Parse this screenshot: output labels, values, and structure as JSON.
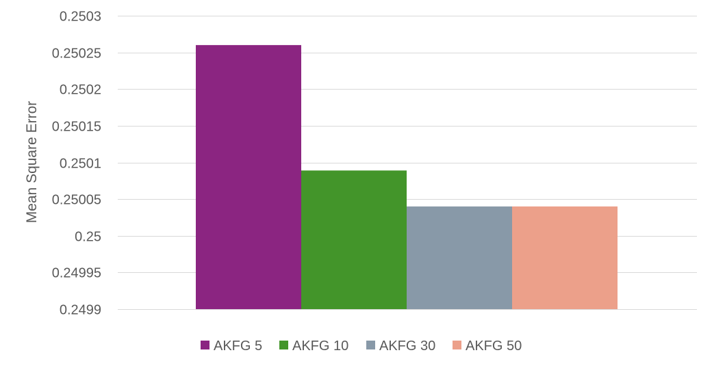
{
  "chart_data": {
    "type": "bar",
    "title": "",
    "xlabel": "",
    "ylabel": "Mean Square Error",
    "ylim": [
      0.2499,
      0.2503
    ],
    "yticks": [
      "0.2499",
      "0.24995",
      "0.25",
      "0.25005",
      "0.2501",
      "0.25015",
      "0.2502",
      "0.25025",
      "0.2503"
    ],
    "yticks_values": [
      0.2499,
      0.24995,
      0.25,
      0.25005,
      0.2501,
      0.25015,
      0.2502,
      0.25025,
      0.2503
    ],
    "grid": true,
    "legend_position": "bottom",
    "series": [
      {
        "name": "AKFG 5",
        "value": 0.25026,
        "color": "#8B2581"
      },
      {
        "name": "AKFG 10",
        "value": 0.250089,
        "color": "#43952A"
      },
      {
        "name": "AKFG 30",
        "value": 0.25004,
        "color": "#8899A8"
      },
      {
        "name": "AKFG 50",
        "value": 0.25004,
        "color": "#ECA08A"
      }
    ]
  }
}
